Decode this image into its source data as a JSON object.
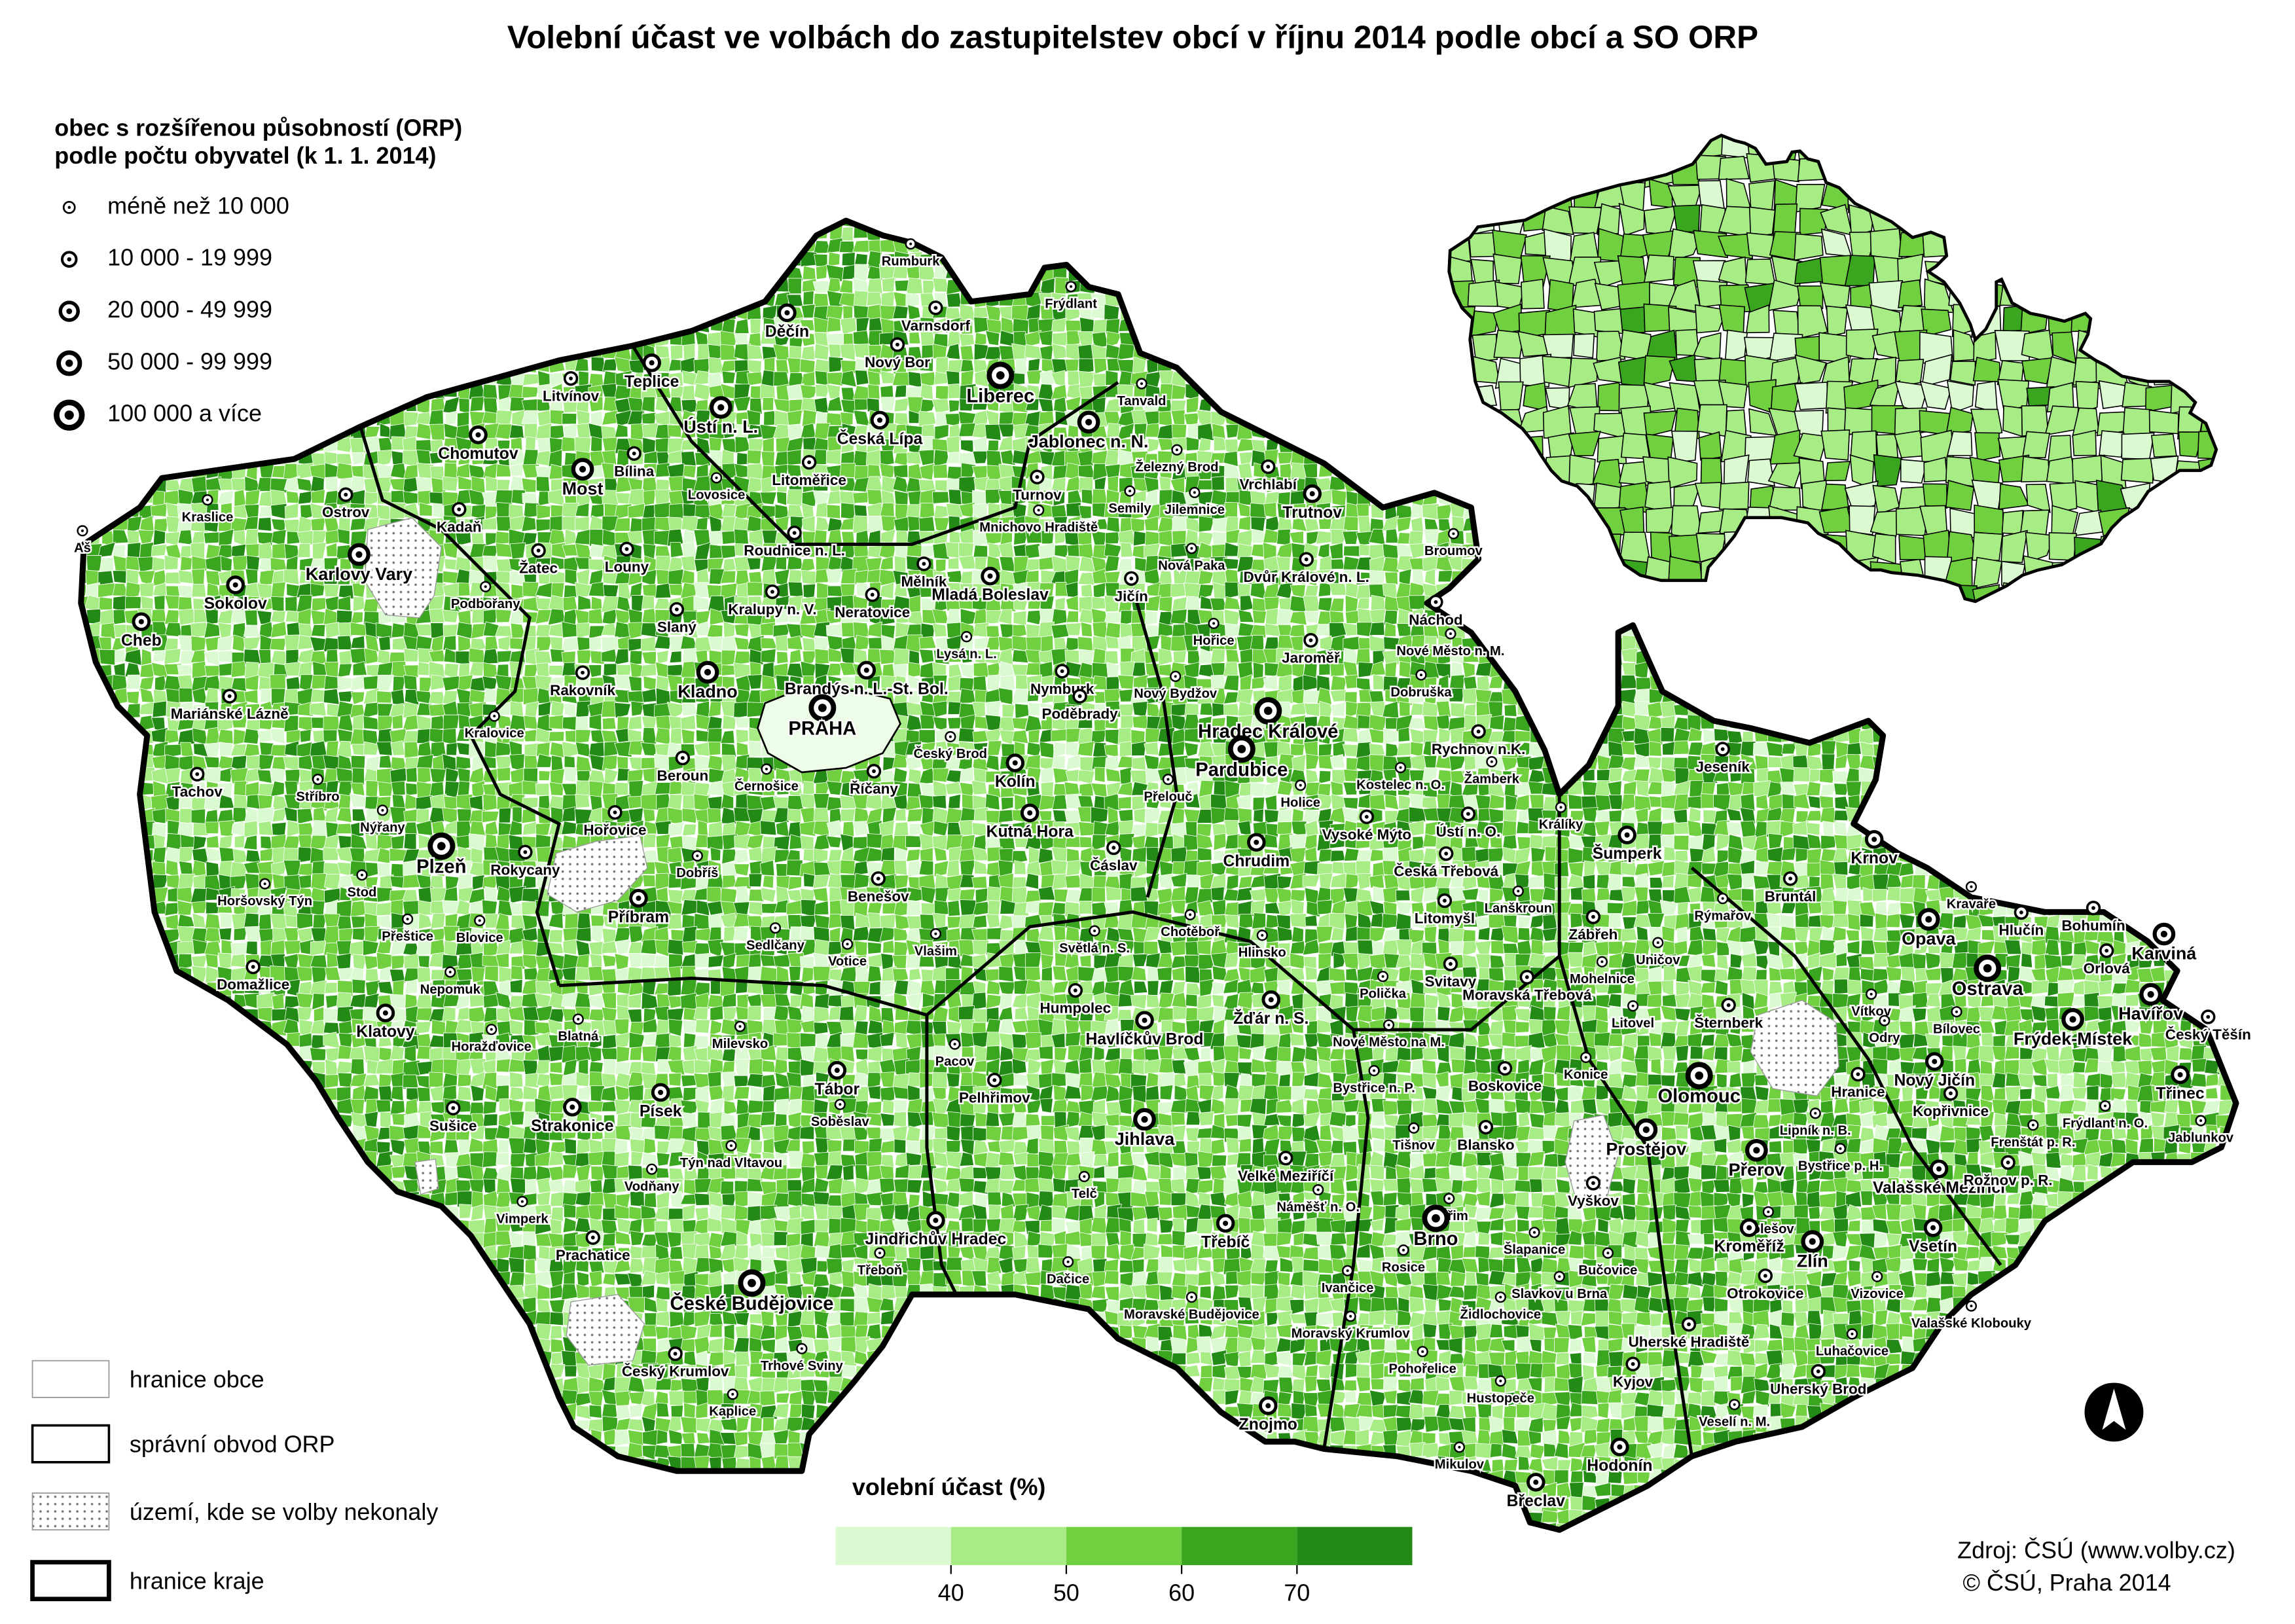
{
  "title": "Volební účast ve volbách do zastupitelstev obcí v říjnu 2014 podle obcí a SO ORP",
  "population_legend": {
    "title_lines": [
      "obec s rozšířenou působností (ORP)",
      "podle počtu obyvatel (k 1. 1. 2014)"
    ],
    "classes": [
      "méně než 10 000",
      "10 000 - 19 999",
      "20 000 - 49 999",
      "50 000 - 99 999",
      "100 000 a více"
    ]
  },
  "boundary_legend": [
    "hranice obce",
    "správní obvod ORP",
    "území, kde se volby nekonaly",
    "hranice kraje"
  ],
  "turnout_legend": {
    "title": "volební účast (%)",
    "colors": [
      "#dcfad2",
      "#a8ec86",
      "#70d03f",
      "#3aa61f",
      "#238a16"
    ],
    "ticks": [
      40,
      50,
      60,
      70
    ]
  },
  "source": [
    "Zdroj: ČSÚ (www.volby.cz)",
    "© ČSÚ, Praha 2014"
  ],
  "cities": {
    "names": [
      "Rumburk",
      "Varnsdorf",
      "Děčín",
      "Frýdlant",
      "Nový Bor",
      "Liberec",
      "Tanvald",
      "Litvínov",
      "Teplice",
      "Ústí n. L.",
      "Česká Lípa",
      "Jablonec n. N.",
      "Chomutov",
      "Bílina",
      "Most",
      "Litoměřice",
      "Lovosice",
      "Železný Brod",
      "Turnov",
      "Vrchlabí",
      "Kraslice",
      "Ostrov",
      "Kadaň",
      "Semily",
      "Jilemnice",
      "Mnichovo Hradiště",
      "Trutnov",
      "Aš",
      "Karlovy Vary",
      "Žatec",
      "Louny",
      "Roudnice n. L.",
      "Broumov",
      "Mělník",
      "Nová Paka",
      "Dvůr Králové n. L.",
      "Sokolov",
      "Podbořany",
      "Kralupy n. V.",
      "Neratovice",
      "Mladá Boleslav",
      "Jičín",
      "Cheb",
      "Slaný",
      "Náchod",
      "Hořice",
      "Lysá n. L.",
      "Nové Město n. M.",
      "Jaroměř",
      "Rakovník",
      "Kladno",
      "Brandýs n. L.-St. Bol.",
      "Nymburk",
      "Nový Bydžov",
      "Dobruška",
      "Mariánské Lázně",
      "Poděbrady",
      "PRAHA",
      "Hradec Králové",
      "Kralovice",
      "Rychnov n.K.",
      "Český Brod",
      "Beroun",
      "Tachov",
      "Stříbro",
      "Černošice",
      "Pardubice",
      "Žamberk",
      "Kolín",
      "Přelouč",
      "Kostelec n. O.",
      "Holice",
      "Říčany",
      "Kutná Hora",
      "Králíky",
      "Jeseník",
      "Nýřany",
      "Hořovice",
      "Plzeň",
      "Rokycany",
      "Vysoké Mýto",
      "Ústí n. O.",
      "Šumperk",
      "Dobříš",
      "Chrudim",
      "Čáslav",
      "Krnov",
      "Česká Třebová",
      "Horšovský Týn",
      "Stod",
      "Příbram",
      "Benešov",
      "Bruntál",
      "Lanškroun",
      "Litomyšl",
      "Rýmařov",
      "Kravaře",
      "Přeštice",
      "Blovice",
      "Chotěboř",
      "Opava",
      "Hlučín",
      "Bohumín",
      "Zábřeh",
      "Sedlčany",
      "Votice",
      "Vlašim",
      "Světlá n. S.",
      "Hlinsko",
      "Karviná",
      "Orlová",
      "Mohelnice",
      "Uničov",
      "Domažlice",
      "Nepomuk",
      "Svitavy",
      "Polička",
      "Moravská Třebová",
      "Ostrava",
      "Havířov",
      "Humpolec",
      "Havlíčkův Brod",
      "Žďár n. S.",
      "Šternberk",
      "Litovel",
      "Vítkov",
      "Bílovec",
      "Český Těšín",
      "Klatovy",
      "Blatná",
      "Milevsko",
      "Odry",
      "Horažďovice",
      "Nové Město na M.",
      "Frýdek-Místek",
      "Pacov",
      "Tábor",
      "Konice",
      "Olomouc",
      "Nový Jičín",
      "Třinec",
      "Hranice",
      "Pelhřimov",
      "Boskovice",
      "Bystřice n. P.",
      "Písek",
      "Strakonice",
      "Kopřivnice",
      "Frýdlant n. O.",
      "Jihlava",
      "Lipník n. B.",
      "Soběslav",
      "Sušice",
      "Prostějov",
      "Frenštát p. R.",
      "Jablunkov",
      "Tišnov",
      "Blansko",
      "Týn nad Vltavou",
      "Přerov",
      "Bystřice p. H.",
      "Valašské Meziříčí",
      "Rožnov p. R.",
      "Velké Meziříčí",
      "Vodňany",
      "Telč",
      "Vyškov",
      "Náměšť n. O.",
      "Vimperk",
      "Kuřim",
      "Holešov",
      "Třebíč",
      "Jindřichův Hradec",
      "Brno",
      "Šlapanice",
      "Kroměříž",
      "Vsetín",
      "Prachatice",
      "Zlín",
      "Třeboň",
      "Rosice",
      "Bučovice",
      "Dačice",
      "Ivančice",
      "Slavkov u Brna",
      "Otrokovice",
      "Vizovice",
      "České Budějovice",
      "Moravské Budějovice",
      "Židlochovice",
      "Moravský Krumlov",
      "Valašské Klobouky",
      "Uherské Hradiště",
      "Luhačovice",
      "Český Krumlov",
      "Trhové Sviny",
      "Pohořelice",
      "Kyjov",
      "Uherský Brod",
      "Hustopeče",
      "Kaplice",
      "Veselí n. M.",
      "Znojmo",
      "Mikulov",
      "Hodonín",
      "Břeclav"
    ],
    "size_classes": [
      0,
      1,
      2,
      0,
      1,
      4,
      0,
      1,
      2,
      3,
      2,
      3,
      2,
      1,
      3,
      1,
      0,
      0,
      1,
      1,
      0,
      1,
      1,
      0,
      0,
      0,
      2,
      0,
      3,
      1,
      1,
      1,
      0,
      1,
      0,
      1,
      2,
      0,
      1,
      1,
      2,
      1,
      2,
      1,
      1,
      0,
      0,
      0,
      1,
      1,
      3,
      2,
      1,
      0,
      0,
      1,
      1,
      4,
      4,
      0,
      1,
      0,
      1,
      1,
      0,
      0,
      4,
      0,
      2,
      0,
      0,
      0,
      1,
      2,
      0,
      1,
      0,
      1,
      4,
      1,
      1,
      1,
      2,
      0,
      2,
      1,
      2,
      1,
      0,
      0,
      2,
      1,
      1,
      0,
      1,
      0,
      0,
      0,
      0,
      0,
      3,
      1,
      1,
      1,
      0,
      0,
      0,
      0,
      0,
      3,
      1,
      0,
      0,
      1,
      0,
      1,
      0,
      1,
      4,
      3,
      1,
      2,
      2,
      1,
      0,
      0,
      0,
      1,
      2,
      0,
      0,
      0,
      0,
      0,
      3,
      0,
      2,
      0,
      4,
      2,
      2,
      1,
      1,
      1,
      0,
      2,
      2,
      1,
      0,
      3,
      0,
      0,
      1,
      3,
      0,
      0,
      0,
      1,
      0,
      3,
      0,
      2,
      1,
      1,
      0,
      0,
      1,
      0,
      0,
      0,
      0,
      2,
      2,
      4,
      0,
      2,
      2,
      1,
      3,
      0,
      0,
      0,
      0,
      0,
      0,
      1,
      0,
      4,
      0,
      0,
      0,
      0,
      1,
      0,
      1,
      0,
      0,
      1,
      1,
      0,
      0,
      0,
      2,
      0,
      2,
      2
    ]
  }
}
